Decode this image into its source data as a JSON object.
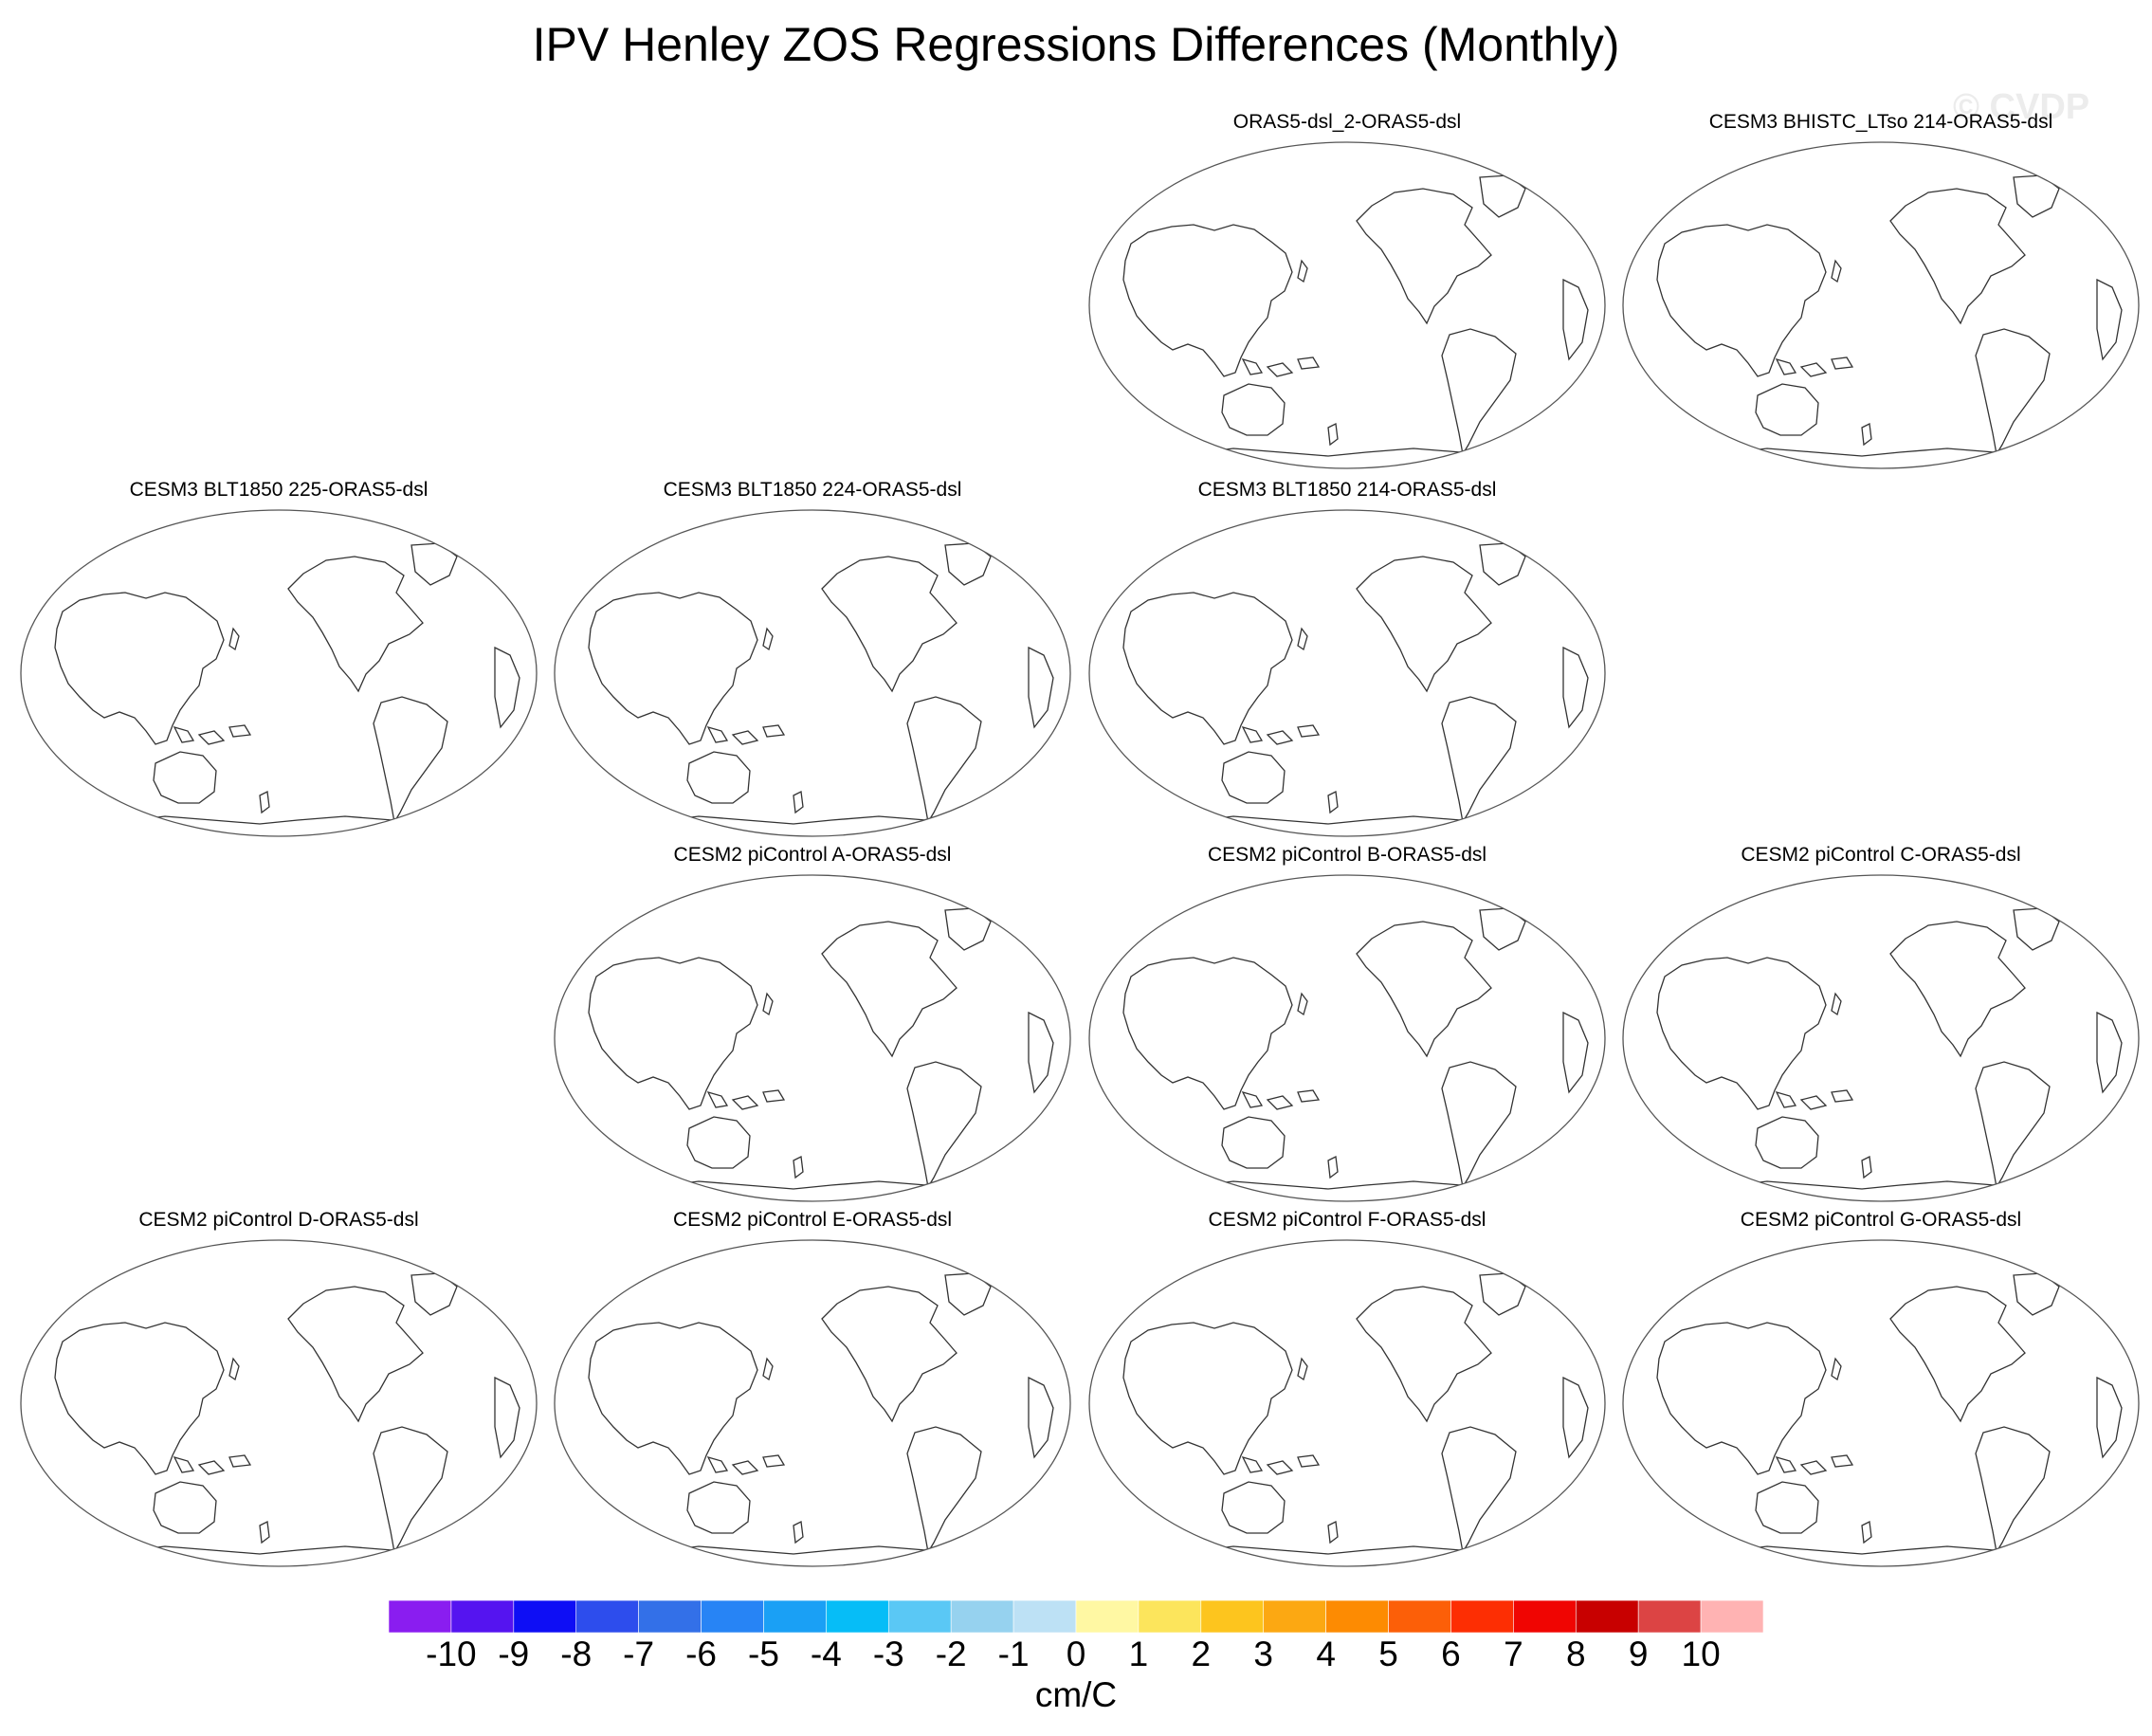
{
  "title": "IPV Henley ZOS Regressions Differences (Monthly)",
  "watermark": "© CVDP",
  "panels": [
    {
      "title": "ORAS5-dsl_2-ORAS5-dsl",
      "row": 0,
      "col": 2
    },
    {
      "title": "CESM3 BHISTC_LTso 214-ORAS5-dsl",
      "row": 0,
      "col": 3
    },
    {
      "title": "CESM3 BLT1850 225-ORAS5-dsl",
      "row": 1,
      "col": 0
    },
    {
      "title": "CESM3 BLT1850 224-ORAS5-dsl",
      "row": 1,
      "col": 1
    },
    {
      "title": "CESM3 BLT1850 214-ORAS5-dsl",
      "row": 1,
      "col": 2
    },
    {
      "title": "CESM2 piControl A-ORAS5-dsl",
      "row": 2,
      "col": 1
    },
    {
      "title": "CESM2 piControl B-ORAS5-dsl",
      "row": 2,
      "col": 2
    },
    {
      "title": "CESM2 piControl C-ORAS5-dsl",
      "row": 2,
      "col": 3
    },
    {
      "title": "CESM2 piControl D-ORAS5-dsl",
      "row": 3,
      "col": 0
    },
    {
      "title": "CESM2 piControl E-ORAS5-dsl",
      "row": 3,
      "col": 1
    },
    {
      "title": "CESM2 piControl F-ORAS5-dsl",
      "row": 3,
      "col": 2
    },
    {
      "title": "CESM2 piControl G-ORAS5-dsl",
      "row": 3,
      "col": 3
    }
  ],
  "colorbar": {
    "units": "cm/C",
    "tick_labels": [
      "-10",
      "-9",
      "-8",
      "-7",
      "-6",
      "-5",
      "-4",
      "-3",
      "-2",
      "-1",
      "0",
      "1",
      "2",
      "3",
      "4",
      "5",
      "6",
      "7",
      "8",
      "9",
      "10"
    ],
    "colors": [
      "#8a1df0",
      "#5514f0",
      "#0e0ef5",
      "#2d4ded",
      "#3370e8",
      "#2784f5",
      "#1aa0f5",
      "#06bdf7",
      "#5ac8f5",
      "#96d2ef",
      "#bde1f5",
      "#fff8a3",
      "#fce55c",
      "#fdc51e",
      "#fca812",
      "#fd8b02",
      "#fc5f08",
      "#fd2e03",
      "#f00502",
      "#c80000",
      "#dc4444",
      "#ffb3b3"
    ]
  }
}
